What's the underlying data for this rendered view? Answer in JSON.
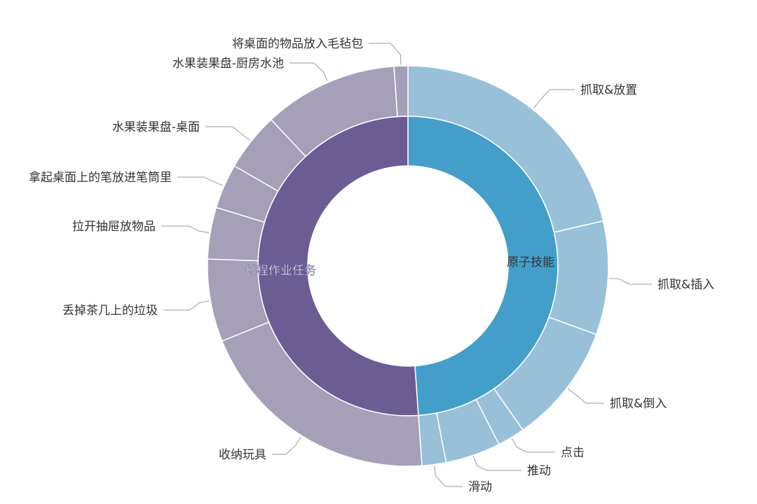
{
  "chart_data": {
    "type": "sunburst",
    "colors": {
      "inner": {
        "原子技能": "#439fca",
        "长程作业任务": "#6b5d94"
      },
      "outer": {
        "原子技能": "#98c1d9",
        "长程作业任务": "#a59fb8"
      },
      "separator": "#ffffff",
      "leader_line": "#9a9a9a"
    },
    "inner": [
      {
        "name": "原子技能",
        "value": 176
      },
      {
        "name": "长程作业任务",
        "value": 184
      }
    ],
    "outer": [
      {
        "name": "抓取&放置",
        "parent": "原子技能",
        "value": 77
      },
      {
        "name": "抓取&插入",
        "parent": "原子技能",
        "value": 33
      },
      {
        "name": "抓取&倒入",
        "parent": "原子技能",
        "value": 35
      },
      {
        "name": "点击",
        "parent": "原子技能",
        "value": 8
      },
      {
        "name": "推动",
        "parent": "原子技能",
        "value": 16
      },
      {
        "name": "滑动",
        "parent": "原子技能",
        "value": 7
      },
      {
        "name": "收纳玩具",
        "parent": "长程作业任务",
        "value": 72
      },
      {
        "name": "丢掉茶几上的垃圾",
        "parent": "长程作业任务",
        "value": 24
      },
      {
        "name": "拉开抽屉放物品",
        "parent": "长程作业任务",
        "value": 15
      },
      {
        "name": "拿起桌面上的笔放进笔筒里",
        "parent": "长程作业任务",
        "value": 13
      },
      {
        "name": "水果装果盘-桌面",
        "parent": "长程作业任务",
        "value": 17
      },
      {
        "name": "水果装果盘-厨房水池",
        "parent": "长程作业任务",
        "value": 39
      },
      {
        "name": "将桌面的物品放入毛毡包",
        "parent": "长程作业任务",
        "value": 4
      }
    ]
  }
}
